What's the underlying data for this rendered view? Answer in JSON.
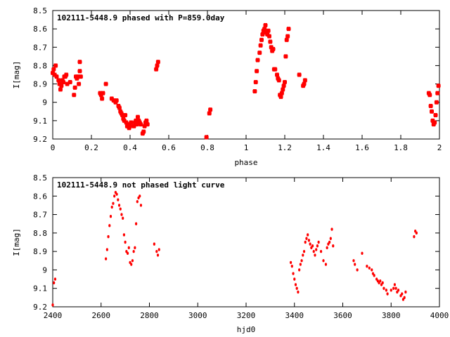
{
  "colors": {
    "points": "#ff0000",
    "axes": "#000000",
    "background": "#ffffff"
  },
  "chart_data": [
    {
      "type": "scatter",
      "title": "102111-5448.9 phased with P=859.0day",
      "xlabel": "phase",
      "ylabel": "I[mag]",
      "xlim": [
        0,
        2
      ],
      "ylim": [
        8.5,
        9.2
      ],
      "y_inverted": true,
      "xticks": [
        0,
        0.2,
        0.4,
        0.6,
        0.8,
        1,
        1.2,
        1.4,
        1.6,
        1.8,
        2
      ],
      "xtick_labels": [
        "0",
        "0.2",
        "0.4",
        "0.6",
        "0.8",
        "1",
        "1.2",
        "1.4",
        "1.6",
        "1.8",
        "2"
      ],
      "yticks": [
        8.5,
        8.6,
        8.7,
        8.8,
        8.9,
        9.0,
        9.1,
        9.2
      ],
      "ytick_labels": [
        "8.5",
        "8.6",
        "8.7",
        "8.8",
        "8.9",
        "9",
        "9.1",
        "9.2"
      ],
      "grid": false,
      "legend": "none",
      "series": [
        {
          "x": [
            0.0,
            0.005,
            0.01,
            0.015,
            0.02,
            0.03,
            0.035,
            0.04,
            0.045,
            0.05,
            0.055,
            0.06,
            0.065,
            0.07,
            0.075,
            0.09,
            0.11,
            0.115,
            0.12,
            0.125,
            0.13,
            0.135,
            0.14,
            0.14,
            0.145,
            0.245,
            0.25,
            0.255,
            0.26,
            0.275,
            0.305,
            0.315,
            0.325,
            0.33,
            0.34,
            0.345,
            0.35,
            0.355,
            0.36,
            0.365,
            0.37,
            0.375,
            0.38,
            0.385,
            0.39,
            0.395,
            0.4,
            0.405,
            0.42,
            0.425,
            0.43,
            0.435,
            0.44,
            0.445,
            0.45,
            0.455,
            0.465,
            0.47,
            0.475,
            0.48,
            0.485,
            0.49,
            0.535,
            0.54,
            0.545,
            0.795,
            0.81,
            0.815,
            1.045,
            1.05,
            1.055,
            1.06,
            1.07,
            1.075,
            1.08,
            1.085,
            1.09,
            1.095,
            1.1,
            1.105,
            1.11,
            1.115,
            1.12,
            1.125,
            1.13,
            1.135,
            1.14,
            1.145,
            1.15,
            1.16,
            1.165,
            1.17,
            1.175,
            1.18,
            1.185,
            1.19,
            1.195,
            1.2,
            1.205,
            1.21,
            1.215,
            1.22,
            1.275,
            1.295,
            1.3,
            1.305,
            1.945,
            1.95,
            1.955,
            1.96,
            1.965,
            1.97,
            1.975,
            1.98,
            1.985,
            1.99,
            1.995
          ],
          "y": [
            8.84,
            8.82,
            8.85,
            8.8,
            8.86,
            8.88,
            8.9,
            8.93,
            8.91,
            8.88,
            8.89,
            8.86,
            8.86,
            8.85,
            8.9,
            8.89,
            8.96,
            8.92,
            8.86,
            8.87,
            8.86,
            8.9,
            8.83,
            8.78,
            8.86,
            8.95,
            8.96,
            8.98,
            8.95,
            8.9,
            8.98,
            8.99,
            9.0,
            8.99,
            9.02,
            9.03,
            9.05,
            9.06,
            9.07,
            9.09,
            9.1,
            9.07,
            9.11,
            9.13,
            9.12,
            9.14,
            9.13,
            9.11,
            9.13,
            9.11,
            9.1,
            9.12,
            9.08,
            9.1,
            9.11,
            9.12,
            9.17,
            9.16,
            9.13,
            9.11,
            9.1,
            9.12,
            8.82,
            8.8,
            8.78,
            9.19,
            9.06,
            9.04,
            8.94,
            8.89,
            8.83,
            8.77,
            8.73,
            8.69,
            8.66,
            8.63,
            8.61,
            8.6,
            8.58,
            8.62,
            8.63,
            8.61,
            8.64,
            8.67,
            8.7,
            8.72,
            8.71,
            8.82,
            8.82,
            8.85,
            8.87,
            8.88,
            8.96,
            8.97,
            8.95,
            8.93,
            8.91,
            8.89,
            8.75,
            8.66,
            8.64,
            8.6,
            8.85,
            8.91,
            8.9,
            8.88,
            8.95,
            8.96,
            9.02,
            9.05,
            9.1,
            9.12,
            9.11,
            9.07,
            9.0,
            8.95,
            8.91
          ]
        }
      ]
    },
    {
      "type": "scatter",
      "title": "102111-5448.9 not phased light curve",
      "xlabel": "hjd0",
      "ylabel": "I[mag]",
      "xlim": [
        2400,
        4000
      ],
      "ylim": [
        8.5,
        9.2
      ],
      "y_inverted": true,
      "xticks": [
        2400,
        2600,
        2800,
        3000,
        3200,
        3400,
        3600,
        3800,
        4000
      ],
      "xtick_labels": [
        "2400",
        "2600",
        "2800",
        "3000",
        "3200",
        "3400",
        "3600",
        "3800",
        "4000"
      ],
      "yticks": [
        8.5,
        8.6,
        8.7,
        8.8,
        8.9,
        9.0,
        9.1,
        9.2
      ],
      "ytick_labels": [
        "8.5",
        "8.6",
        "8.7",
        "8.8",
        "8.9",
        "9",
        "9.1",
        "9.2"
      ],
      "grid": false,
      "legend": "none",
      "series": [
        {
          "x": [
            2400,
            2405,
            2410,
            2620,
            2625,
            2630,
            2635,
            2640,
            2645,
            2650,
            2655,
            2660,
            2665,
            2670,
            2675,
            2680,
            2685,
            2690,
            2695,
            2700,
            2705,
            2710,
            2715,
            2720,
            2725,
            2730,
            2735,
            2740,
            2745,
            2750,
            2755,
            2760,
            2765,
            2820,
            2830,
            2835,
            2840,
            3385,
            3390,
            3395,
            3400,
            3405,
            3410,
            3415,
            3420,
            3425,
            3430,
            3435,
            3440,
            3445,
            3450,
            3455,
            3460,
            3465,
            3470,
            3475,
            3480,
            3485,
            3490,
            3495,
            3500,
            3510,
            3520,
            3530,
            3535,
            3540,
            3545,
            3550,
            3555,
            3560,
            3645,
            3650,
            3660,
            3680,
            3700,
            3710,
            3720,
            3725,
            3730,
            3740,
            3745,
            3750,
            3755,
            3760,
            3765,
            3770,
            3780,
            3785,
            3800,
            3810,
            3815,
            3820,
            3825,
            3830,
            3840,
            3845,
            3850,
            3855,
            3860,
            3895,
            3900,
            3905
          ],
          "y": [
            9.19,
            9.07,
            9.05,
            8.94,
            8.89,
            8.82,
            8.76,
            8.71,
            8.66,
            8.64,
            8.6,
            8.58,
            8.59,
            8.62,
            8.65,
            8.67,
            8.7,
            8.72,
            8.81,
            8.85,
            8.9,
            8.91,
            8.88,
            8.96,
            8.97,
            8.95,
            8.9,
            8.88,
            8.75,
            8.63,
            8.61,
            8.6,
            8.65,
            8.86,
            8.9,
            8.92,
            8.89,
            8.96,
            8.98,
            9.02,
            9.05,
            9.08,
            9.1,
            9.12,
            9.0,
            8.97,
            8.95,
            8.92,
            8.9,
            8.85,
            8.83,
            8.81,
            8.84,
            8.86,
            8.88,
            8.87,
            8.9,
            8.92,
            8.89,
            8.87,
            8.85,
            8.9,
            8.95,
            8.97,
            8.88,
            8.86,
            8.85,
            8.83,
            8.78,
            8.87,
            8.95,
            8.97,
            9.0,
            8.91,
            8.98,
            8.99,
            9.0,
            9.02,
            9.03,
            9.05,
            9.06,
            9.07,
            9.06,
            9.08,
            9.07,
            9.1,
            9.11,
            9.13,
            9.11,
            9.1,
            9.08,
            9.1,
            9.12,
            9.11,
            9.14,
            9.13,
            9.16,
            9.15,
            9.12,
            8.82,
            8.79,
            8.8
          ]
        }
      ]
    }
  ]
}
